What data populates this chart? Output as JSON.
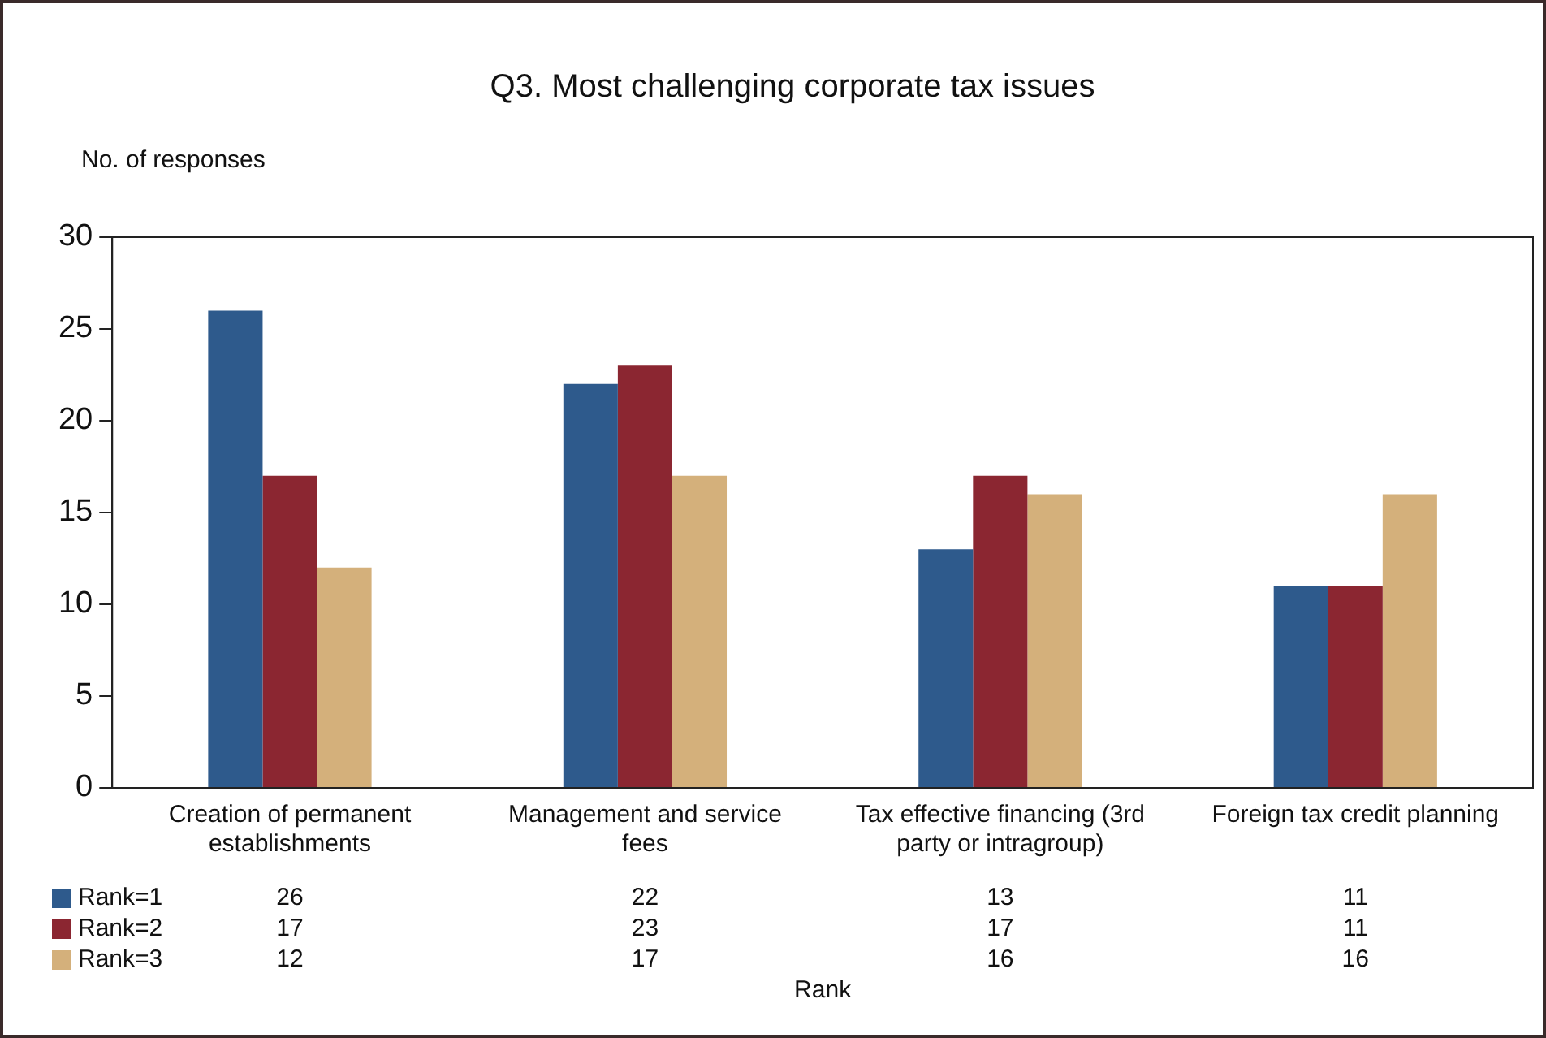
{
  "chart_data": {
    "type": "bar",
    "title": "Q3. Most challenging corporate tax issues",
    "ylabel": "No. of responses",
    "xlabel": "Rank",
    "categories": [
      "Creation of permanent establishments",
      "Management and service fees",
      "Tax effective financing (3rd party or intragroup)",
      "Foreign tax credit planning"
    ],
    "series": [
      {
        "name": "Rank=1",
        "color": "#2e5a8c",
        "values": [
          26,
          22,
          13,
          11
        ]
      },
      {
        "name": "Rank=2",
        "color": "#8b2631",
        "values": [
          17,
          23,
          17,
          11
        ]
      },
      {
        "name": "Rank=3",
        "color": "#d4b07b",
        "values": [
          12,
          17,
          16,
          16
        ]
      }
    ],
    "ylim": [
      0,
      30
    ],
    "yticks": [
      0,
      5,
      10,
      15,
      20,
      25,
      30
    ],
    "grid": false,
    "legend": "bottom",
    "data_labels": true
  }
}
